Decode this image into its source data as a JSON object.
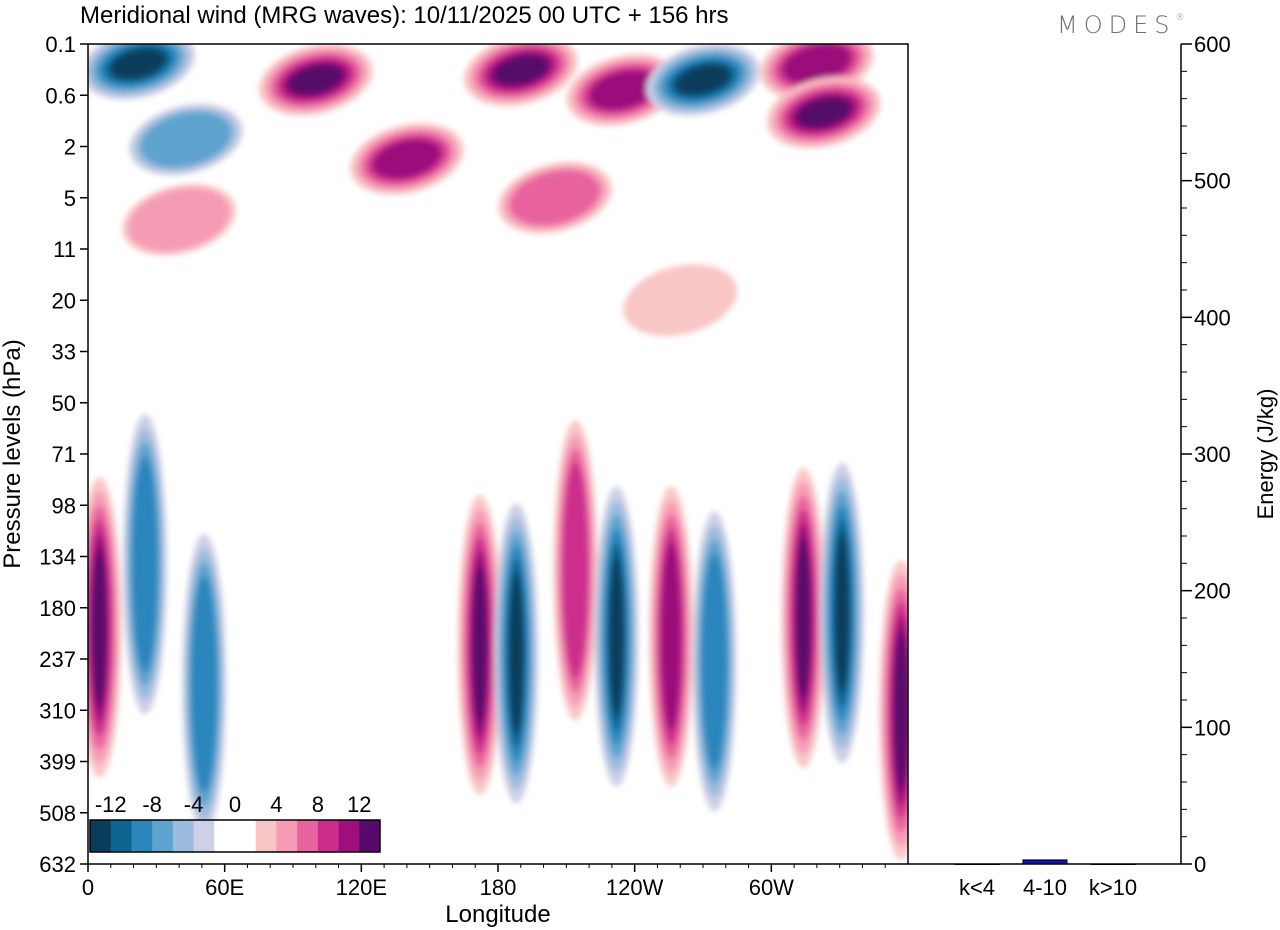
{
  "header": {
    "title": "Meridional wind (MRG waves):  10/11/2025  00 UTC  + 156 hrs",
    "brand": "MODES",
    "brand_mark": "®"
  },
  "chart_data": [
    {
      "type": "heatmap",
      "title": "Meridional wind (MRG waves)",
      "xlabel": "Longitude",
      "ylabel": "Pressure levels (hPa)",
      "x_ticks": [
        "0",
        "60E",
        "120E",
        "180",
        "120W",
        "60W"
      ],
      "x_tick_longitudes": [
        0,
        60,
        120,
        180,
        240,
        300
      ],
      "xlim": [
        0,
        360
      ],
      "y_ticks": [
        "0.1",
        "0.6",
        "2",
        "5",
        "11",
        "20",
        "33",
        "50",
        "71",
        "98",
        "134",
        "180",
        "237",
        "310",
        "399",
        "508",
        "632"
      ],
      "colorbar": {
        "labels": [
          "-12",
          "-8",
          "-4",
          "0",
          "4",
          "8",
          "12"
        ],
        "label_values": [
          -12,
          -8,
          -4,
          0,
          4,
          8,
          12
        ],
        "range": [
          -14,
          14
        ],
        "colors": [
          "#0a3d5c",
          "#0f6592",
          "#2a86bd",
          "#5fa3cf",
          "#9bbcdc",
          "#cdd0e6",
          "#ffffff",
          "#ffffff",
          "#f9c6c6",
          "#f59bb6",
          "#e8649e",
          "#cc2d8d",
          "#9c0f7c",
          "#560a6b"
        ]
      },
      "features": [
        {
          "lon": 22,
          "level": 0.2,
          "value": -14
        },
        {
          "lon": 43,
          "level": 1.7,
          "value": -7
        },
        {
          "lon": 100,
          "level": 0.35,
          "value": 12
        },
        {
          "lon": 140,
          "level": 2.5,
          "value": 10
        },
        {
          "lon": 190,
          "level": 0.25,
          "value": 12
        },
        {
          "lon": 205,
          "level": 5,
          "value": 7
        },
        {
          "lon": 235,
          "level": 0.5,
          "value": 11
        },
        {
          "lon": 270,
          "level": 0.35,
          "value": -14
        },
        {
          "lon": 320,
          "level": 0.2,
          "value": 11
        },
        {
          "lon": 323,
          "level": 0.9,
          "value": 12
        },
        {
          "lon": 40,
          "level": 7,
          "value": 5
        },
        {
          "lon": 260,
          "level": 20,
          "value": 3
        },
        {
          "lon": 5,
          "level": 200,
          "value": 14
        },
        {
          "lon": 25,
          "level": 140,
          "value": -9
        },
        {
          "lon": 51,
          "level": 270,
          "value": -9
        },
        {
          "lon": 172,
          "level": 220,
          "value": 12
        },
        {
          "lon": 188,
          "level": 230,
          "value": -13
        },
        {
          "lon": 214,
          "level": 145,
          "value": 8
        },
        {
          "lon": 232,
          "level": 210,
          "value": -12
        },
        {
          "lon": 256,
          "level": 210,
          "value": 11
        },
        {
          "lon": 275,
          "level": 240,
          "value": -8
        },
        {
          "lon": 314,
          "level": 190,
          "value": 13
        },
        {
          "lon": 331,
          "level": 185,
          "value": -14
        },
        {
          "lon": 357,
          "level": 310,
          "value": 12
        }
      ]
    },
    {
      "type": "bar",
      "categories": [
        "k<4",
        "4-10",
        "k>10"
      ],
      "values": [
        0,
        3,
        0
      ],
      "ylabel": "Energy (J/kg)",
      "ylim": [
        0,
        600
      ],
      "y_ticks": [
        "0",
        "100",
        "200",
        "300",
        "400",
        "500",
        "600"
      ],
      "bar_color": "#1515a0"
    }
  ]
}
